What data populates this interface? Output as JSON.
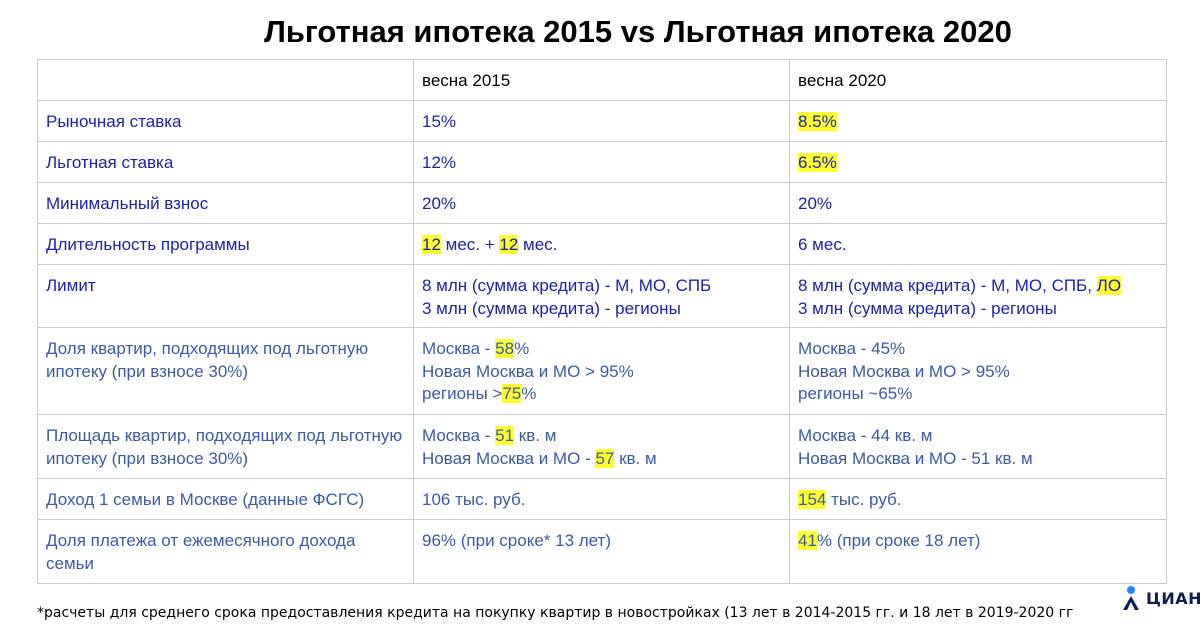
{
  "title": "Льготная ипотека 2015 vs Льготная ипотека 2020",
  "columns": [
    "",
    "весна 2015",
    "весна 2020"
  ],
  "rows": [
    {
      "label": "Рыночная ставка",
      "h": 41,
      "v2015": [
        [
          {
            "t": "15%"
          }
        ]
      ],
      "v2020": [
        [
          {
            "t": "8.5%",
            "hl": true
          }
        ]
      ]
    },
    {
      "label": "Льготная ставка",
      "h": 41,
      "v2015": [
        [
          {
            "t": "12%"
          }
        ]
      ],
      "v2020": [
        [
          {
            "t": "6.5%",
            "hl": true
          }
        ]
      ]
    },
    {
      "label": "Минимальный взнос",
      "h": 41,
      "v2015": [
        [
          {
            "t": "20%"
          }
        ]
      ],
      "v2020": [
        [
          {
            "t": "20%"
          }
        ]
      ]
    },
    {
      "label": "Длительность программы",
      "h": 41,
      "v2015": [
        [
          {
            "t": "12",
            "hl": true
          },
          {
            "t": " мес. + "
          },
          {
            "t": "12",
            "hl": true
          },
          {
            "t": " мес."
          }
        ]
      ],
      "v2020": [
        [
          {
            "t": "6 мес."
          }
        ]
      ]
    },
    {
      "label": "Лимит",
      "h": 63,
      "v2015": [
        [
          {
            "t": "8 млн (сумма кредита) - М, МО, СПБ"
          }
        ],
        [
          {
            "t": "3 млн (сумма кредита) - регионы"
          }
        ]
      ],
      "v2020": [
        [
          {
            "t": "8 млн (сумма кредита) - М, МО, СПБ, "
          },
          {
            "t": "ЛО",
            "hl": true
          }
        ],
        [
          {
            "t": "3 млн (сумма кредита) - регионы"
          }
        ]
      ]
    },
    {
      "label": "Доля квартир, подходящих под льготную ипотеку (при взносе 30%)",
      "h": 87,
      "light": true,
      "v2015": [
        [
          {
            "t": "Москва - "
          },
          {
            "t": "58",
            "hl": true
          },
          {
            "t": "%"
          }
        ],
        [
          {
            "t": "Новая Москва и МО > 95%"
          }
        ],
        [
          {
            "t": "регионы >"
          },
          {
            "t": "75",
            "hl": true
          },
          {
            "t": "%"
          }
        ]
      ],
      "v2020": [
        [
          {
            "t": "Москва - 45%"
          }
        ],
        [
          {
            "t": "Новая Москва и МО > 95%"
          }
        ],
        [
          {
            "t": "регионы ~65%"
          }
        ]
      ]
    },
    {
      "label": "Площадь квартир, подходящих под льготную ипотеку (при взносе 30%)",
      "h": 64,
      "light": true,
      "v2015": [
        [
          {
            "t": "Москва - "
          },
          {
            "t": "51",
            "hl": true
          },
          {
            "t": " кв. м"
          }
        ],
        [
          {
            "t": "Новая Москва и МО - "
          },
          {
            "t": "57",
            "hl": true
          },
          {
            "t": " кв. м"
          }
        ]
      ],
      "v2020": [
        [
          {
            "t": "Москва - 44 кв. м"
          }
        ],
        [
          {
            "t": "Новая Москва и МО - 51 кв. м"
          }
        ]
      ]
    },
    {
      "label": "Доход 1 семьи в Москве (данные ФСГС)",
      "h": 41,
      "light": true,
      "v2015": [
        [
          {
            "t": "106 тыс. руб."
          }
        ]
      ],
      "v2020": [
        [
          {
            "t": "154",
            "hl": true
          },
          {
            "t": " тыс. руб."
          }
        ]
      ]
    },
    {
      "label": "Доля платежа от ежемесячного дохода семьи",
      "h": 64,
      "light": true,
      "v2015": [
        [
          {
            "t": "96% (при сроке* 13 лет)"
          }
        ]
      ],
      "v2020": [
        [
          {
            "t": "41",
            "hl": true
          },
          {
            "t": "% (при сроке 18 лет)"
          }
        ]
      ]
    }
  ],
  "footnote": "*расчеты для среднего срока предоставления кредита на покупку квартир в новостройках (13 лет в 2014-2015 гг. и 18 лет в 2019-2020 гг",
  "logo": {
    "text": "ЦИАН",
    "icon": "cian-logo-icon",
    "color": "#0f1e4a",
    "accent": "#1a8cff"
  }
}
